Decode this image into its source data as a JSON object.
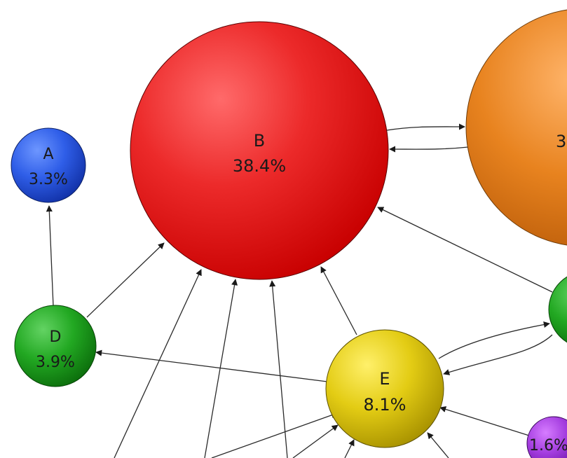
{
  "nodes": [
    {
      "id": "B",
      "letter": "B",
      "value": "38.4%"
    },
    {
      "id": "A",
      "letter": "A",
      "value": "3.3%"
    },
    {
      "id": "D",
      "letter": "D",
      "value": "3.9%"
    },
    {
      "id": "E",
      "letter": "E",
      "value": "8.1%"
    },
    {
      "id": "C",
      "letter": "",
      "value": "3"
    },
    {
      "id": "F",
      "letter": "",
      "value": ""
    },
    {
      "id": "P",
      "letter": "",
      "value": "1.6%"
    }
  ],
  "colors": {
    "B": "#e4141b",
    "A": "#1f52e0",
    "D": "#17a317",
    "E": "#d9c300",
    "C": "#e8831f",
    "F": "#1f9f1f",
    "P": "#9b2fd6"
  }
}
